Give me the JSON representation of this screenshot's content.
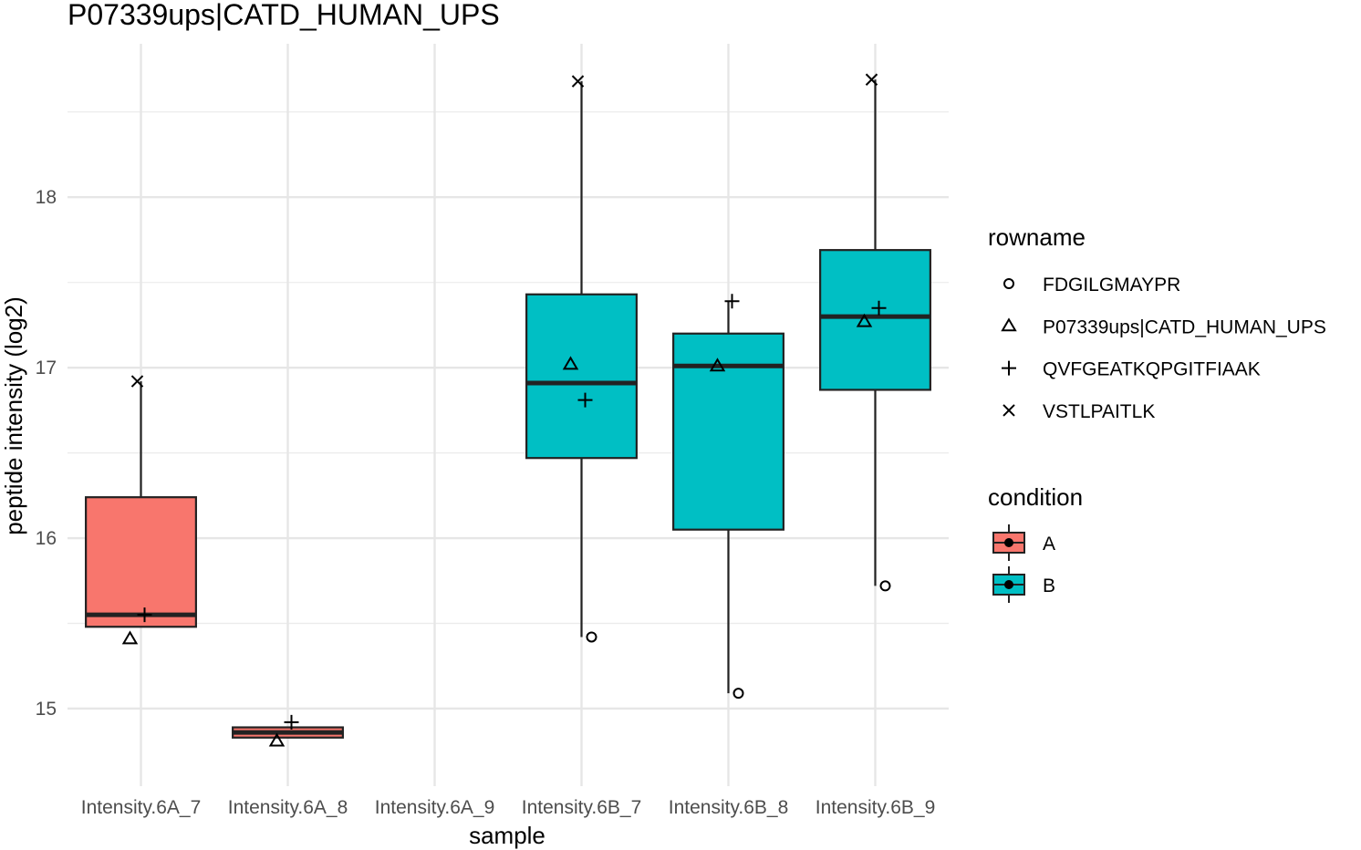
{
  "chart_data": {
    "type": "box",
    "title": "P07339ups|CATD_HUMAN_UPS",
    "xlabel": "sample",
    "ylabel": "peptide intensity (log2)",
    "categories": [
      "Intensity.6A_7",
      "Intensity.6A_8",
      "Intensity.6A_9",
      "Intensity.6B_7",
      "Intensity.6B_8",
      "Intensity.6B_9"
    ],
    "ylim": [
      14.62,
      18.9
    ],
    "yticks": [
      15,
      16,
      17,
      18
    ],
    "grid": true,
    "boxes": [
      {
        "sample": "Intensity.6A_7",
        "condition": "A",
        "lower_whisker": 15.48,
        "q1": 15.48,
        "median": 15.55,
        "q3": 16.24,
        "upper_whisker": 16.92
      },
      {
        "sample": "Intensity.6A_8",
        "condition": "A",
        "lower_whisker": 14.83,
        "q1": 14.83,
        "median": 14.86,
        "q3": 14.89,
        "upper_whisker": 14.89
      },
      {
        "sample": "Intensity.6B_7",
        "condition": "B",
        "lower_whisker": 15.42,
        "q1": 16.47,
        "median": 16.91,
        "q3": 17.43,
        "upper_whisker": 18.68
      },
      {
        "sample": "Intensity.6B_8",
        "condition": "B",
        "lower_whisker": 15.09,
        "q1": 16.05,
        "median": 17.01,
        "q3": 17.2,
        "upper_whisker": 17.39
      },
      {
        "sample": "Intensity.6B_9",
        "condition": "B",
        "lower_whisker": 15.72,
        "q1": 16.87,
        "median": 17.3,
        "q3": 17.69,
        "upper_whisker": 18.69
      }
    ],
    "points": [
      {
        "sample": "Intensity.6A_7",
        "rowname": "VSTLPAITLK",
        "value": 16.92
      },
      {
        "sample": "Intensity.6A_7",
        "rowname": "QVFGEATKQPGITFIAAK",
        "value": 15.55
      },
      {
        "sample": "Intensity.6A_7",
        "rowname": "P07339ups|CATD_HUMAN_UPS",
        "value": 15.41
      },
      {
        "sample": "Intensity.6A_8",
        "rowname": "QVFGEATKQPGITFIAAK",
        "value": 14.92
      },
      {
        "sample": "Intensity.6A_8",
        "rowname": "P07339ups|CATD_HUMAN_UPS",
        "value": 14.81
      },
      {
        "sample": "Intensity.6B_7",
        "rowname": "VSTLPAITLK",
        "value": 18.68
      },
      {
        "sample": "Intensity.6B_7",
        "rowname": "P07339ups|CATD_HUMAN_UPS",
        "value": 17.02
      },
      {
        "sample": "Intensity.6B_7",
        "rowname": "QVFGEATKQPGITFIAAK",
        "value": 16.81
      },
      {
        "sample": "Intensity.6B_7",
        "rowname": "FDGILGMAYPR",
        "value": 15.42
      },
      {
        "sample": "Intensity.6B_8",
        "rowname": "QVFGEATKQPGITFIAAK",
        "value": 17.39
      },
      {
        "sample": "Intensity.6B_8",
        "rowname": "P07339ups|CATD_HUMAN_UPS",
        "value": 17.01
      },
      {
        "sample": "Intensity.6B_8",
        "rowname": "FDGILGMAYPR",
        "value": 15.09
      },
      {
        "sample": "Intensity.6B_9",
        "rowname": "VSTLPAITLK",
        "value": 18.69
      },
      {
        "sample": "Intensity.6B_9",
        "rowname": "QVFGEATKQPGITFIAAK",
        "value": 17.35
      },
      {
        "sample": "Intensity.6B_9",
        "rowname": "P07339ups|CATD_HUMAN_UPS",
        "value": 17.27
      },
      {
        "sample": "Intensity.6B_9",
        "rowname": "FDGILGMAYPR",
        "value": 15.72
      }
    ],
    "legend_rowname": {
      "title": "rowname",
      "items": [
        {
          "label": "FDGILGMAYPR",
          "shape": "circle"
        },
        {
          "label": "P07339ups|CATD_HUMAN_UPS",
          "shape": "triangle"
        },
        {
          "label": "QVFGEATKQPGITFIAAK",
          "shape": "plus"
        },
        {
          "label": "VSTLPAITLK",
          "shape": "cross"
        }
      ]
    },
    "legend_condition": {
      "title": "condition",
      "items": [
        {
          "label": "A",
          "color": "#F8766D"
        },
        {
          "label": "B",
          "color": "#00BFC4"
        }
      ]
    },
    "legend_position": "right",
    "colors": {
      "A": "#F8766D",
      "B": "#00BFC4"
    }
  }
}
